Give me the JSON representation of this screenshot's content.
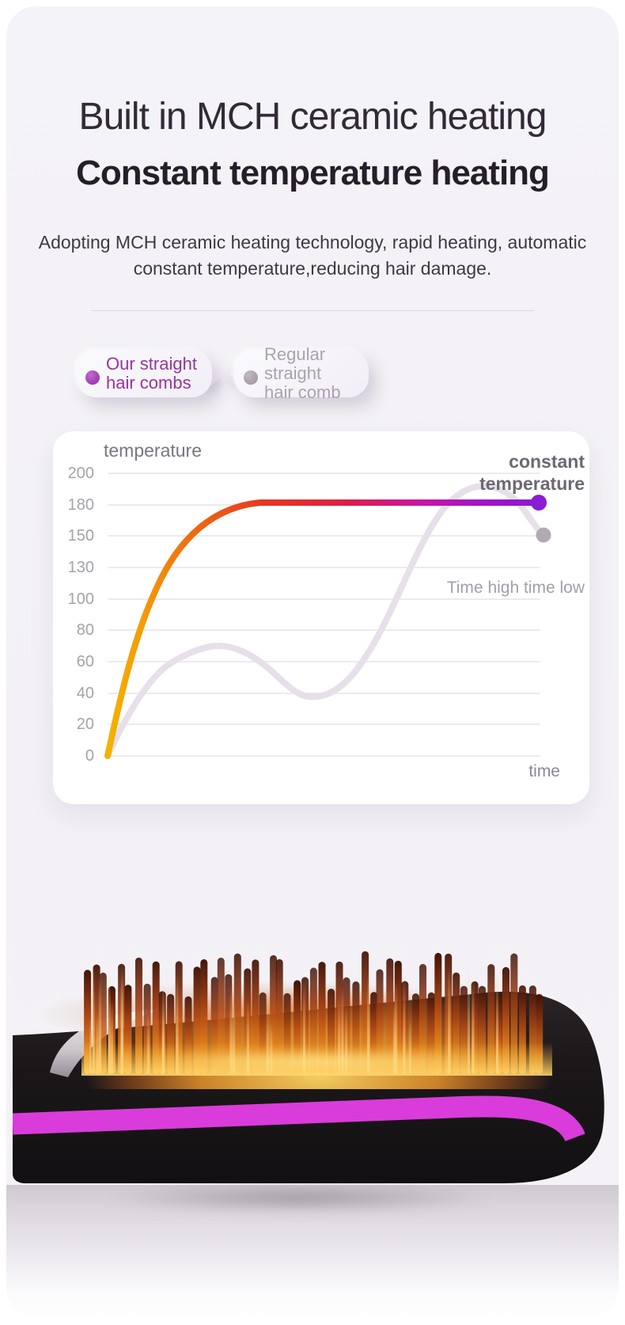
{
  "header": {
    "title_line1": "Built in MCH ceramic heating",
    "title_line2": "Constant temperature heating",
    "description": "Adopting MCH ceramic heating technology, rapid heating, automatic\nconstant temperature,reducing hair damage."
  },
  "legend": {
    "ours": {
      "line1": "Our straight",
      "line2": "hair combs",
      "dot_color": "#9c3cb0",
      "text_color": "#96359f"
    },
    "regular": {
      "line1": "Regular straight",
      "line2": "hair comb",
      "dot_color": "#a59ca8",
      "text_color": "#a9a3ae"
    }
  },
  "chart_data": {
    "type": "line",
    "y_axis_title": "temperature",
    "x_axis_title": "time",
    "y_ticks": [
      200,
      180,
      150,
      130,
      100,
      80,
      60,
      40,
      20,
      0
    ],
    "ylim": [
      0,
      200
    ],
    "grid": true,
    "legend_position": "above chart, pill buttons",
    "annotations": {
      "constant": "constant\ntemperature",
      "fluctuating": "Time high time low"
    },
    "series": [
      {
        "name": "Our straight hair combs",
        "behavior": "rapid rise then constant temperature",
        "x_percent": [
          0,
          5,
          15,
          28,
          40,
          70,
          100
        ],
        "values": [
          0,
          45,
          130,
          178,
          182,
          182,
          182
        ],
        "end_value": 182,
        "gradient": [
          {
            "offset": "0%",
            "color": "#f3b402"
          },
          {
            "offset": "8%",
            "color": "#f59b08"
          },
          {
            "offset": "20%",
            "color": "#ef6a12"
          },
          {
            "offset": "35%",
            "color": "#e73a20"
          },
          {
            "offset": "55%",
            "color": "#dc1f44"
          },
          {
            "offset": "72%",
            "color": "#cc15a0"
          },
          {
            "offset": "88%",
            "color": "#a013cc"
          },
          {
            "offset": "100%",
            "color": "#8a17d6"
          }
        ],
        "end_dot_color": "#8a1cd3"
      },
      {
        "name": "Regular straight hair comb",
        "behavior": "temperature fluctuates high and low",
        "x_percent": [
          0,
          10,
          27,
          45,
          60,
          75,
          88,
          100
        ],
        "values": [
          0,
          35,
          70,
          38,
          60,
          140,
          188,
          150
        ],
        "end_value": 150,
        "color": "#e7dfe9",
        "end_dot_color": "#b3a9b4"
      }
    ]
  },
  "product_image": {
    "alt": "heated hair straightening comb with glowing ceramic bristles",
    "body_color": "#1c181a",
    "accent_stripe_color": "#d93cda",
    "glow_color": "#f8a728",
    "bristle_tip_color": "#3f1206",
    "bristle_base_color": "#f6ae33"
  }
}
